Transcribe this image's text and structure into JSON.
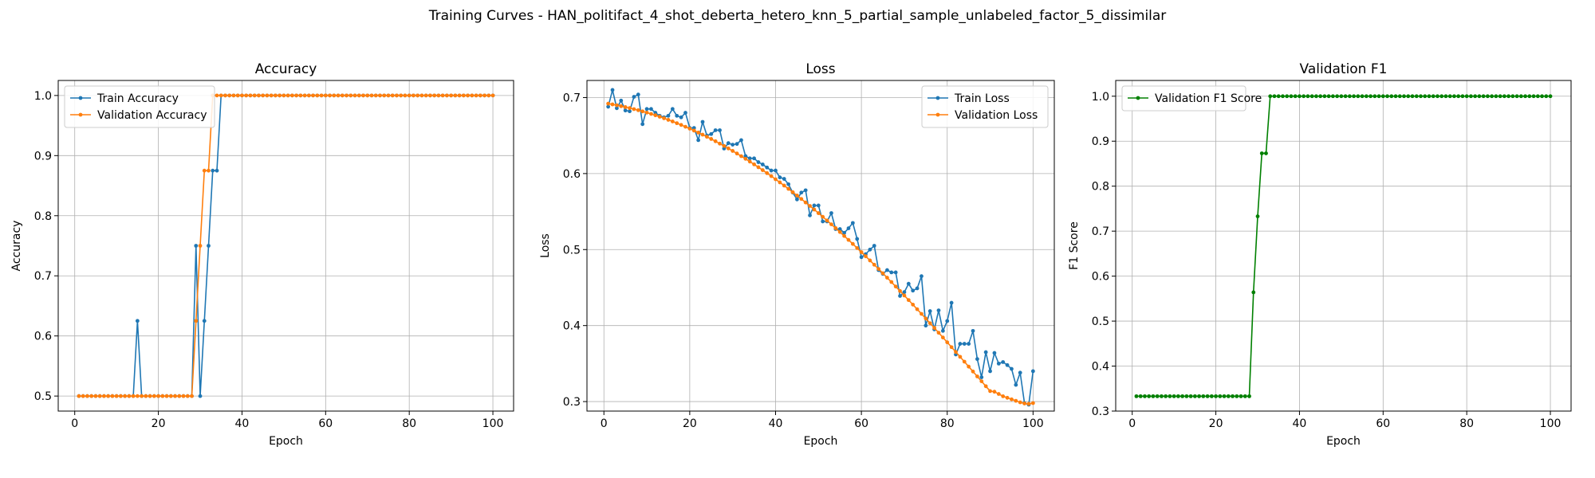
{
  "figure": {
    "suptitle": "Training Curves - HAN_politifact_4_shot_deberta_hetero_knn_5_partial_sample_unlabeled_factor_5_dissimilar"
  },
  "colors": {
    "train": "#1f77b4",
    "validation": "#ff7f0e",
    "f1": "#008000",
    "grid": "#b0b0b0"
  },
  "chart_data": [
    {
      "type": "line",
      "title": "Accuracy",
      "xlabel": "Epoch",
      "ylabel": "Accuracy",
      "xlim": [
        -3.95,
        104.95
      ],
      "ylim": [
        0.475,
        1.025
      ],
      "xticks": [
        0,
        20,
        40,
        60,
        80,
        100
      ],
      "yticks": [
        0.5,
        0.6,
        0.7,
        0.8,
        0.9,
        1.0
      ],
      "ytick_labels": [
        "0.5",
        "0.6",
        "0.7",
        "0.8",
        "0.9",
        "1.0"
      ],
      "grid": true,
      "legend": "top-left",
      "series": [
        {
          "name": "Train Accuracy",
          "color_key": "train",
          "start_x": 1,
          "values": [
            0.5,
            0.5,
            0.5,
            0.5,
            0.5,
            0.5,
            0.5,
            0.5,
            0.5,
            0.5,
            0.5,
            0.5,
            0.5,
            0.5,
            0.625,
            0.5,
            0.5,
            0.5,
            0.5,
            0.5,
            0.5,
            0.5,
            0.5,
            0.5,
            0.5,
            0.5,
            0.5,
            0.5,
            0.75,
            0.5,
            0.625,
            0.75,
            0.875,
            0.875,
            1.0,
            1.0,
            1.0,
            1.0,
            1.0,
            1.0,
            1.0,
            1.0,
            1.0,
            1.0,
            1.0,
            1.0,
            1.0,
            1.0,
            1.0,
            1.0,
            1.0,
            1.0,
            1.0,
            1.0,
            1.0,
            1.0,
            1.0,
            1.0,
            1.0,
            1.0,
            1.0,
            1.0,
            1.0,
            1.0,
            1.0,
            1.0,
            1.0,
            1.0,
            1.0,
            1.0,
            1.0,
            1.0,
            1.0,
            1.0,
            1.0,
            1.0,
            1.0,
            1.0,
            1.0,
            1.0,
            1.0,
            1.0,
            1.0,
            1.0,
            1.0,
            1.0,
            1.0,
            1.0,
            1.0,
            1.0,
            1.0,
            1.0,
            1.0,
            1.0,
            1.0,
            1.0,
            1.0,
            1.0,
            1.0,
            1.0
          ]
        },
        {
          "name": "Validation Accuracy",
          "color_key": "validation",
          "start_x": 1,
          "values": [
            0.5,
            0.5,
            0.5,
            0.5,
            0.5,
            0.5,
            0.5,
            0.5,
            0.5,
            0.5,
            0.5,
            0.5,
            0.5,
            0.5,
            0.5,
            0.5,
            0.5,
            0.5,
            0.5,
            0.5,
            0.5,
            0.5,
            0.5,
            0.5,
            0.5,
            0.5,
            0.5,
            0.5,
            0.625,
            0.75,
            0.875,
            0.875,
            1.0,
            1.0,
            1.0,
            1.0,
            1.0,
            1.0,
            1.0,
            1.0,
            1.0,
            1.0,
            1.0,
            1.0,
            1.0,
            1.0,
            1.0,
            1.0,
            1.0,
            1.0,
            1.0,
            1.0,
            1.0,
            1.0,
            1.0,
            1.0,
            1.0,
            1.0,
            1.0,
            1.0,
            1.0,
            1.0,
            1.0,
            1.0,
            1.0,
            1.0,
            1.0,
            1.0,
            1.0,
            1.0,
            1.0,
            1.0,
            1.0,
            1.0,
            1.0,
            1.0,
            1.0,
            1.0,
            1.0,
            1.0,
            1.0,
            1.0,
            1.0,
            1.0,
            1.0,
            1.0,
            1.0,
            1.0,
            1.0,
            1.0,
            1.0,
            1.0,
            1.0,
            1.0,
            1.0,
            1.0,
            1.0,
            1.0,
            1.0,
            1.0
          ]
        }
      ]
    },
    {
      "type": "line",
      "title": "Loss",
      "xlabel": "Epoch",
      "ylabel": "Loss",
      "xlim": [
        -3.95,
        104.95
      ],
      "ylim": [
        0.2875,
        0.7225
      ],
      "xticks": [
        0,
        20,
        40,
        60,
        80,
        100
      ],
      "yticks": [
        0.3,
        0.4,
        0.5,
        0.6,
        0.7
      ],
      "ytick_labels": [
        "0.3",
        "0.4",
        "0.5",
        "0.6",
        "0.7"
      ],
      "grid": true,
      "legend": "top-right",
      "series": [
        {
          "name": "Train Loss",
          "color_key": "train",
          "start_x": 1,
          "values": [
            0.688,
            0.71,
            0.686,
            0.696,
            0.683,
            0.682,
            0.701,
            0.704,
            0.665,
            0.685,
            0.685,
            0.68,
            0.676,
            0.674,
            0.676,
            0.685,
            0.676,
            0.674,
            0.68,
            0.66,
            0.66,
            0.644,
            0.668,
            0.65,
            0.652,
            0.657,
            0.657,
            0.633,
            0.64,
            0.638,
            0.639,
            0.644,
            0.623,
            0.62,
            0.62,
            0.615,
            0.612,
            0.608,
            0.604,
            0.604,
            0.595,
            0.593,
            0.586,
            0.575,
            0.566,
            0.575,
            0.578,
            0.545,
            0.558,
            0.558,
            0.537,
            0.537,
            0.548,
            0.527,
            0.527,
            0.522,
            0.528,
            0.535,
            0.514,
            0.49,
            0.494,
            0.5,
            0.505,
            0.473,
            0.468,
            0.473,
            0.47,
            0.47,
            0.439,
            0.444,
            0.455,
            0.446,
            0.449,
            0.465,
            0.4,
            0.419,
            0.395,
            0.42,
            0.393,
            0.406,
            0.43,
            0.362,
            0.376,
            0.376,
            0.376,
            0.393,
            0.356,
            0.332,
            0.365,
            0.34,
            0.364,
            0.35,
            0.352,
            0.348,
            0.343,
            0.322,
            0.338,
            0.298,
            0.296,
            0.34
          ]
        },
        {
          "name": "Validation Loss",
          "color_key": "validation",
          "start_x": 1,
          "values": [
            0.692,
            0.691,
            0.6899,
            0.6887,
            0.6875,
            0.6862,
            0.6848,
            0.6834,
            0.6818,
            0.6802,
            0.6785,
            0.6767,
            0.6748,
            0.6728,
            0.6707,
            0.6686,
            0.6663,
            0.664,
            0.6616,
            0.6591,
            0.6566,
            0.6539,
            0.6512,
            0.6484,
            0.6455,
            0.6425,
            0.6394,
            0.6363,
            0.6331,
            0.6298,
            0.6264,
            0.6229,
            0.6194,
            0.6158,
            0.6121,
            0.6083,
            0.6045,
            0.6006,
            0.5966,
            0.5925,
            0.5884,
            0.5842,
            0.5799,
            0.5755,
            0.5711,
            0.5666,
            0.562,
            0.5574,
            0.5527,
            0.5479,
            0.5431,
            0.5382,
            0.5332,
            0.5282,
            0.5231,
            0.5179,
            0.5127,
            0.5074,
            0.502,
            0.4966,
            0.4912,
            0.4857,
            0.4801,
            0.4745,
            0.4688,
            0.463,
            0.4573,
            0.4514,
            0.4455,
            0.4396,
            0.4336,
            0.4276,
            0.4215,
            0.4154,
            0.4093,
            0.4031,
            0.3969,
            0.3906,
            0.3843,
            0.378,
            0.3716,
            0.3653,
            0.3589,
            0.3525,
            0.346,
            0.3396,
            0.3331,
            0.3267,
            0.3202,
            0.3138,
            0.313,
            0.31,
            0.307,
            0.305,
            0.303,
            0.301,
            0.299,
            0.2975,
            0.297,
            0.298
          ]
        }
      ]
    },
    {
      "type": "line",
      "title": "Validation F1",
      "xlabel": "Epoch",
      "ylabel": "F1 Score",
      "xlim": [
        -3.95,
        104.95
      ],
      "ylim": [
        0.3,
        1.035
      ],
      "xticks": [
        0,
        20,
        40,
        60,
        80,
        100
      ],
      "yticks": [
        0.3,
        0.4,
        0.5,
        0.6,
        0.7,
        0.8,
        0.9,
        1.0
      ],
      "ytick_labels": [
        "0.3",
        "0.4",
        "0.5",
        "0.6",
        "0.7",
        "0.8",
        "0.9",
        "1.0"
      ],
      "grid": true,
      "legend": "top-left",
      "series": [
        {
          "name": "Validation F1 Score",
          "color_key": "f1",
          "start_x": 1,
          "values": [
            0.333,
            0.333,
            0.333,
            0.333,
            0.333,
            0.333,
            0.333,
            0.333,
            0.333,
            0.333,
            0.333,
            0.333,
            0.333,
            0.333,
            0.333,
            0.333,
            0.333,
            0.333,
            0.333,
            0.333,
            0.333,
            0.333,
            0.333,
            0.333,
            0.333,
            0.333,
            0.333,
            0.333,
            0.564,
            0.733,
            0.873,
            0.873,
            1.0,
            1.0,
            1.0,
            1.0,
            1.0,
            1.0,
            1.0,
            1.0,
            1.0,
            1.0,
            1.0,
            1.0,
            1.0,
            1.0,
            1.0,
            1.0,
            1.0,
            1.0,
            1.0,
            1.0,
            1.0,
            1.0,
            1.0,
            1.0,
            1.0,
            1.0,
            1.0,
            1.0,
            1.0,
            1.0,
            1.0,
            1.0,
            1.0,
            1.0,
            1.0,
            1.0,
            1.0,
            1.0,
            1.0,
            1.0,
            1.0,
            1.0,
            1.0,
            1.0,
            1.0,
            1.0,
            1.0,
            1.0,
            1.0,
            1.0,
            1.0,
            1.0,
            1.0,
            1.0,
            1.0,
            1.0,
            1.0,
            1.0,
            1.0,
            1.0,
            1.0,
            1.0,
            1.0,
            1.0,
            1.0,
            1.0,
            1.0,
            1.0
          ]
        }
      ]
    }
  ]
}
